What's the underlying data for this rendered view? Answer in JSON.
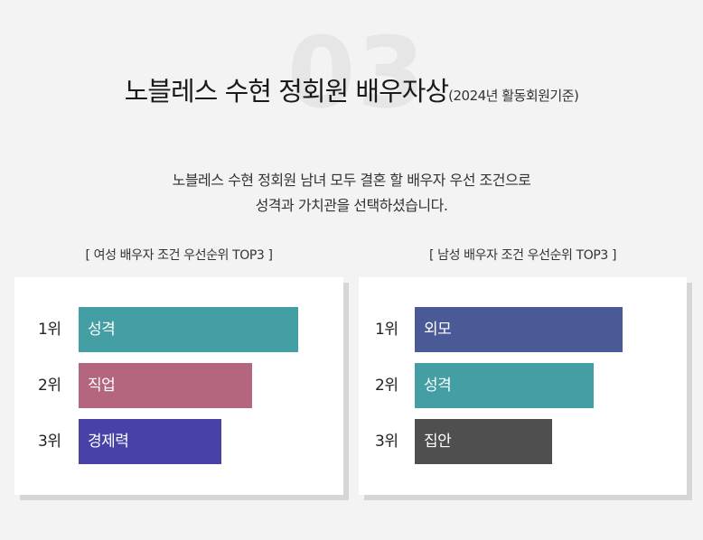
{
  "section_number": "03",
  "title": {
    "main": "노블레스 수현 정회원 배우자상",
    "sub": "(2024년 활동회원기준)"
  },
  "description": {
    "line1": "노블레스 수현 정회원 남녀 모두 결혼 할 배우자 우선 조건으로",
    "line2": "성격과 가치관을 선택하셨습니다."
  },
  "left_panel": {
    "heading": "[ 여성 배우자 조건 우선순위 TOP3 ]",
    "items": [
      {
        "rank": "1위",
        "label": "성격",
        "color": "#449fa5",
        "level": 1.0
      },
      {
        "rank": "2위",
        "label": "직업",
        "color": "#b5667f",
        "level": 0.79
      },
      {
        "rank": "3위",
        "label": "경제력",
        "color": "#4841a8",
        "level": 0.65
      }
    ]
  },
  "right_panel": {
    "heading": "[ 남성 배우자 조건 우선순위 TOP3 ]",
    "items": [
      {
        "rank": "1위",
        "label": "외모",
        "color": "#4a5a96",
        "level": 1.0
      },
      {
        "rank": "2위",
        "label": "성격",
        "color": "#449fa5",
        "level": 0.86
      },
      {
        "rank": "3위",
        "label": "집안",
        "color": "#4f4f4f",
        "level": 0.66
      }
    ]
  }
}
